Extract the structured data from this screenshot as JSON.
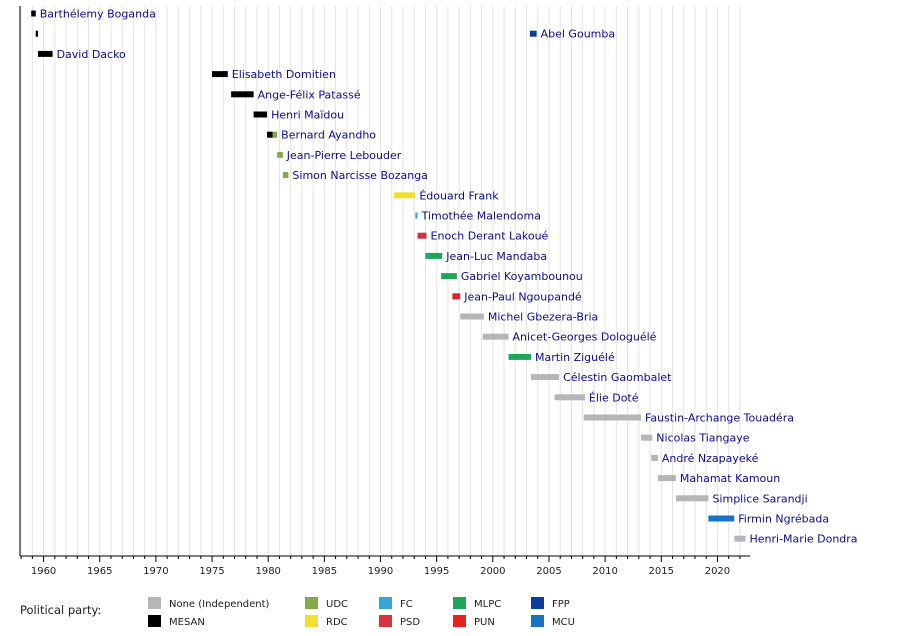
{
  "chart_data": {
    "type": "timeline",
    "xlim": [
      1957.9,
      2022.9
    ],
    "ticks": [
      1960,
      1965,
      1970,
      1975,
      1980,
      1985,
      1990,
      1995,
      2000,
      2005,
      2010,
      2015,
      2020
    ],
    "grid": true,
    "legend_title": "Political party:",
    "legend_position": "bottom",
    "parties": [
      {
        "key": "none",
        "label": "None (Independent)",
        "color": "#b6b6b6"
      },
      {
        "key": "mesan",
        "label": "MESAN",
        "color": "#000000"
      },
      {
        "key": "udc",
        "label": "UDC",
        "color": "#82a94a"
      },
      {
        "key": "rdc",
        "label": "RDC",
        "color": "#f0e034"
      },
      {
        "key": "fc",
        "label": "FC",
        "color": "#35a6d8"
      },
      {
        "key": "psd",
        "label": "PSD",
        "color": "#d7323e"
      },
      {
        "key": "mlpc",
        "label": "MLPC",
        "color": "#1ea65a"
      },
      {
        "key": "pun",
        "label": "PUN",
        "color": "#e52421"
      },
      {
        "key": "fpp",
        "label": "FPP",
        "color": "#0c3c9c"
      },
      {
        "key": "mcu",
        "label": "MCU",
        "color": "#1a72c4"
      }
    ],
    "rows": [
      {
        "name": "Barthélemy Boganda",
        "segments": [
          {
            "start": 1958.9,
            "end": 1959.3,
            "party": "mesan"
          }
        ]
      },
      {
        "name": "Abel Goumba",
        "segments": [
          {
            "start": 1959.3,
            "end": 1959.5,
            "party": "mesan"
          },
          {
            "start": 2003.3,
            "end": 2003.9,
            "party": "fpp"
          }
        ]
      },
      {
        "name": "David Dacko",
        "segments": [
          {
            "start": 1959.5,
            "end": 1960.8,
            "party": "mesan"
          }
        ]
      },
      {
        "name": "Elisabeth Domitien",
        "segments": [
          {
            "start": 1975.0,
            "end": 1976.4,
            "party": "mesan"
          }
        ]
      },
      {
        "name": "Ange-Félix Patassé",
        "segments": [
          {
            "start": 1976.7,
            "end": 1978.7,
            "party": "mesan"
          }
        ]
      },
      {
        "name": "Henri Maïdou",
        "segments": [
          {
            "start": 1978.7,
            "end": 1979.9,
            "party": "mesan"
          }
        ]
      },
      {
        "name": "Bernard Ayandho",
        "segments": [
          {
            "start": 1979.9,
            "end": 1980.4,
            "party": "mesan"
          },
          {
            "start": 1980.4,
            "end": 1980.8,
            "party": "udc"
          }
        ]
      },
      {
        "name": "Jean-Pierre Lebouder",
        "segments": [
          {
            "start": 1980.8,
            "end": 1981.3,
            "party": "udc"
          }
        ]
      },
      {
        "name": "Simon Narcisse Bozanga",
        "segments": [
          {
            "start": 1981.3,
            "end": 1981.8,
            "party": "udc"
          }
        ]
      },
      {
        "name": "Édouard Frank",
        "segments": [
          {
            "start": 1991.2,
            "end": 1993.1,
            "party": "rdc"
          }
        ]
      },
      {
        "name": "Timothée Malendoma",
        "segments": [
          {
            "start": 1993.1,
            "end": 1993.3,
            "party": "fc"
          }
        ]
      },
      {
        "name": "Enoch Derant Lakoué",
        "segments": [
          {
            "start": 1993.3,
            "end": 1994.1,
            "party": "psd"
          }
        ]
      },
      {
        "name": "Jean-Luc Mandaba",
        "segments": [
          {
            "start": 1994.0,
            "end": 1995.5,
            "party": "mlpc"
          }
        ]
      },
      {
        "name": "Gabriel Koyambounou",
        "segments": [
          {
            "start": 1995.4,
            "end": 1996.8,
            "party": "mlpc"
          }
        ]
      },
      {
        "name": "Jean-Paul Ngoupandé",
        "segments": [
          {
            "start": 1996.4,
            "end": 1997.1,
            "party": "pun"
          }
        ]
      },
      {
        "name": "Michel Gbezera-Bria",
        "segments": [
          {
            "start": 1997.1,
            "end": 1999.2,
            "party": "none"
          }
        ]
      },
      {
        "name": "Anicet-Georges Dologuélé",
        "segments": [
          {
            "start": 1999.1,
            "end": 2001.4,
            "party": "none"
          }
        ]
      },
      {
        "name": "Martin Ziguélé",
        "segments": [
          {
            "start": 2001.4,
            "end": 2003.4,
            "party": "mlpc"
          }
        ]
      },
      {
        "name": "Célestin Gaombalet",
        "segments": [
          {
            "start": 2003.4,
            "end": 2005.9,
            "party": "none"
          }
        ]
      },
      {
        "name": "Élie Doté",
        "segments": [
          {
            "start": 2005.5,
            "end": 2008.2,
            "party": "none"
          }
        ]
      },
      {
        "name": "Faustin-Archange Touadéra",
        "segments": [
          {
            "start": 2008.1,
            "end": 2013.2,
            "party": "none"
          }
        ]
      },
      {
        "name": "Nicolas Tiangaye",
        "segments": [
          {
            "start": 2013.2,
            "end": 2014.2,
            "party": "none"
          }
        ]
      },
      {
        "name": "André Nzapayeké",
        "segments": [
          {
            "start": 2014.1,
            "end": 2014.7,
            "party": "none"
          }
        ]
      },
      {
        "name": "Mahamat Kamoun",
        "segments": [
          {
            "start": 2014.7,
            "end": 2016.3,
            "party": "none"
          }
        ]
      },
      {
        "name": "Simplice Sarandji",
        "segments": [
          {
            "start": 2016.3,
            "end": 2019.2,
            "party": "none"
          }
        ]
      },
      {
        "name": "Firmin Ngrébada",
        "segments": [
          {
            "start": 2019.2,
            "end": 2021.5,
            "party": "mcu"
          }
        ]
      },
      {
        "name": "Henri-Marie Dondra",
        "segments": [
          {
            "start": 2021.5,
            "end": 2022.5,
            "party": "none"
          }
        ]
      }
    ]
  }
}
